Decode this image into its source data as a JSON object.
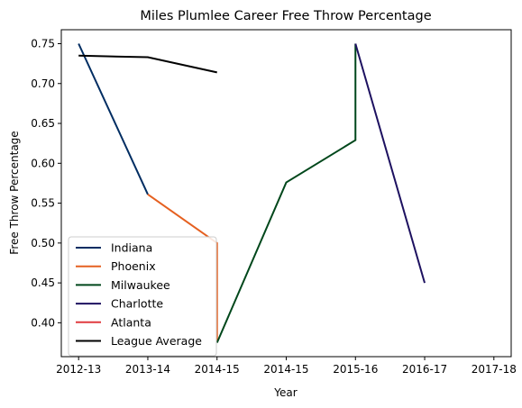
{
  "chart_data": {
    "type": "line",
    "title": "Miles Plumlee Career Free Throw Percentage",
    "xlabel": "Year",
    "ylabel": "Free Throw Percentage",
    "x_ticks": [
      {
        "label": "2012-13",
        "value": 0
      },
      {
        "label": "2013-14",
        "value": 1
      },
      {
        "label": "2014-15",
        "value": 2
      },
      {
        "label": "2014-15",
        "value": 3
      },
      {
        "label": "2015-16",
        "value": 4
      },
      {
        "label": "2016-17",
        "value": 5
      },
      {
        "label": "2017-18",
        "value": 6
      }
    ],
    "y_ticks": [
      0.4,
      0.45,
      0.5,
      0.55,
      0.6,
      0.65,
      0.7,
      0.75
    ],
    "xlim": [
      -0.25,
      6.25
    ],
    "ylim": [
      0.3575,
      0.7675
    ],
    "grid": false,
    "legend_position": "lower-left",
    "series": [
      {
        "name": "Indiana",
        "color": "#002D62",
        "points": [
          [
            0,
            0.75
          ],
          [
            1,
            0.561
          ]
        ]
      },
      {
        "name": "Phoenix",
        "color": "#E56020",
        "points": [
          [
            1,
            0.561
          ],
          [
            2,
            0.5
          ],
          [
            2,
            0.375
          ]
        ]
      },
      {
        "name": "Milwaukee",
        "color": "#00471B",
        "points": [
          [
            2,
            0.375
          ],
          [
            3,
            0.576
          ],
          [
            4,
            0.629
          ],
          [
            4,
            0.75
          ]
        ]
      },
      {
        "name": "Charlotte",
        "color": "#1D1160",
        "points": [
          [
            4,
            0.75
          ],
          [
            5,
            0.45
          ]
        ]
      },
      {
        "name": "Atlanta",
        "color": "#E03A3E",
        "points": []
      },
      {
        "name": "League Average",
        "color": "#000000",
        "points": [
          [
            0,
            0.735
          ],
          [
            1,
            0.733
          ],
          [
            2,
            0.714
          ]
        ]
      }
    ]
  }
}
